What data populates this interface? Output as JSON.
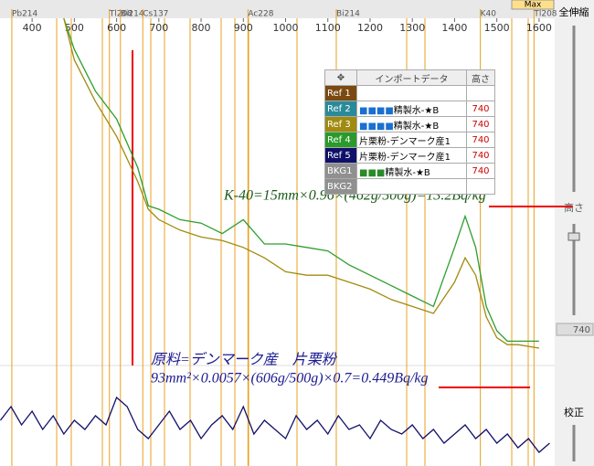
{
  "top_bar": {
    "peaks": [
      {
        "label": "Pb214",
        "energy": 352
      },
      {
        "label": "Tl208",
        "energy": 583
      },
      {
        "label": "Bi214",
        "energy": 609
      },
      {
        "label": "Cs137",
        "energy": 662
      },
      {
        "label": "Ac228",
        "energy": 911
      },
      {
        "label": "Bi214",
        "energy": 1120
      },
      {
        "label": "K40",
        "energy": 1461
      },
      {
        "label": "Tl208",
        "energy": 1588
      }
    ],
    "button": "Max"
  },
  "spectrum": {
    "xlim": [
      324,
      1637
    ],
    "xticks": [
      400,
      500,
      600,
      700,
      800,
      900,
      1000,
      1100,
      1200,
      1300,
      1400,
      1500,
      1600
    ],
    "upper": {
      "ylim": [
        0,
        100
      ],
      "x": [
        475,
        500,
        550,
        600,
        650,
        675,
        700,
        750,
        800,
        850,
        900,
        950,
        1000,
        1050,
        1100,
        1150,
        1200,
        1250,
        1300,
        1350,
        1400,
        1425,
        1450,
        1475,
        1500,
        1525,
        1550,
        1600
      ],
      "series": [
        {
          "name": "Ref 4",
          "color": "#2e9e2e",
          "values": [
            100,
            91,
            79,
            71,
            57,
            46,
            45,
            42,
            41,
            38,
            42,
            35,
            35,
            34,
            33,
            29,
            26,
            23,
            20,
            17,
            34,
            43,
            34,
            17,
            10,
            7,
            7,
            7
          ]
        },
        {
          "name": "Ref 3",
          "color": "#a08c10",
          "values": [
            100,
            88,
            76,
            66,
            53,
            45,
            42,
            39,
            37,
            36,
            34,
            31,
            27,
            26,
            26,
            24,
            22,
            19,
            17,
            15,
            24,
            31,
            26,
            14,
            8,
            6,
            6,
            5
          ]
        }
      ]
    },
    "lower": {
      "ylim": [
        0,
        100
      ],
      "x": [
        325,
        350,
        375,
        400,
        425,
        450,
        475,
        500,
        525,
        550,
        575,
        600,
        625,
        650,
        675,
        700,
        725,
        750,
        775,
        800,
        825,
        850,
        875,
        900,
        925,
        950,
        975,
        1000,
        1025,
        1050,
        1075,
        1100,
        1125,
        1150,
        1175,
        1200,
        1225,
        1250,
        1275,
        1300,
        1325,
        1350,
        1375,
        1400,
        1425,
        1450,
        1475,
        1500,
        1525,
        1550,
        1575,
        1600,
        1625
      ],
      "series": [
        {
          "name": "Ref 5",
          "color": "#10106a",
          "values": [
            40,
            55,
            35,
            50,
            30,
            45,
            25,
            40,
            30,
            45,
            35,
            65,
            55,
            30,
            20,
            35,
            50,
            30,
            40,
            20,
            35,
            45,
            30,
            55,
            25,
            40,
            30,
            20,
            45,
            30,
            40,
            25,
            45,
            30,
            35,
            20,
            40,
            30,
            25,
            35,
            20,
            30,
            15,
            25,
            35,
            20,
            30,
            15,
            25,
            10,
            20,
            5,
            15
          ]
        }
      ]
    }
  },
  "table": {
    "header": [
      "✥",
      "インポートデータ",
      "高さ"
    ],
    "rows": [
      {
        "name": "Ref 1",
        "bg": "#7a4a10",
        "marker": "",
        "marker_color": "#000",
        "label": "",
        "height": ""
      },
      {
        "name": "Ref 2",
        "bg": "#2a8a9a",
        "marker": "■■■■",
        "marker_color": "#1a6fd0",
        "label": "精製水-★B",
        "height": "740"
      },
      {
        "name": "Ref 3",
        "bg": "#a08a10",
        "marker": "■■■■",
        "marker_color": "#1a6fd0",
        "label": "精製水-★B",
        "height": "740"
      },
      {
        "name": "Ref 4",
        "bg": "#2a9a2a",
        "marker": "",
        "marker_color": "#000",
        "label": "片栗粉-デンマーク産1",
        "height": "740"
      },
      {
        "name": "Ref 5",
        "bg": "#10106a",
        "marker": "",
        "marker_color": "#000",
        "label": "片栗粉-デンマーク産1",
        "height": "740"
      },
      {
        "name": "BKG1",
        "bg": "#909090",
        "marker": "■■■",
        "marker_color": "#2a8a2a",
        "label": "精製水-★B",
        "height": "740"
      },
      {
        "name": "BKG2",
        "bg": "#909090",
        "marker": "",
        "marker_color": "#000",
        "label": "",
        "height": ""
      }
    ]
  },
  "annotations": {
    "k40": "K-40=15mm×0.96×(462g/500g)=13.2Bq/kg",
    "material": "原料=デンマーク産　片栗粉",
    "calc": "93mm²×0.0057×(606g/500g)×0.7=0.449Bq/kg"
  },
  "side_panel": {
    "zoom": "全伸縮",
    "height": "高さ",
    "height_value": "740",
    "calibrate": "校正"
  }
}
